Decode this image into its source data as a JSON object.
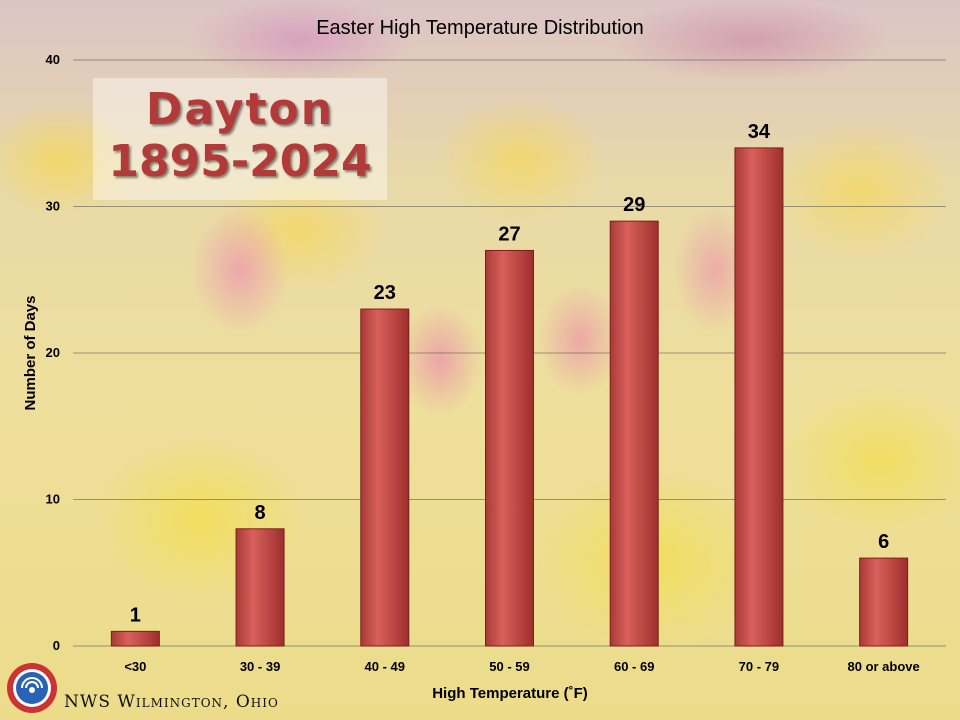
{
  "chart_data": {
    "type": "bar",
    "title": "Easter High Temperature Distribution",
    "xlabel": "High Temperature (˚F)",
    "ylabel": "Number of Days",
    "categories": [
      "<30",
      "30 - 39",
      "40 - 49",
      "50 - 59",
      "60 - 69",
      "70 - 79",
      "80 or above"
    ],
    "values": [
      1,
      8,
      23,
      27,
      29,
      34,
      6
    ],
    "ylim": [
      0,
      40
    ],
    "yticks": [
      0,
      10,
      20,
      30,
      40
    ],
    "grid": true,
    "bar_color": "#c9504d"
  },
  "overlay": {
    "station": "Dayton",
    "period": "1895-2024"
  },
  "footer": {
    "office": "NWS Wilmington, Ohio",
    "logo_icon": "nws-logo-icon"
  }
}
